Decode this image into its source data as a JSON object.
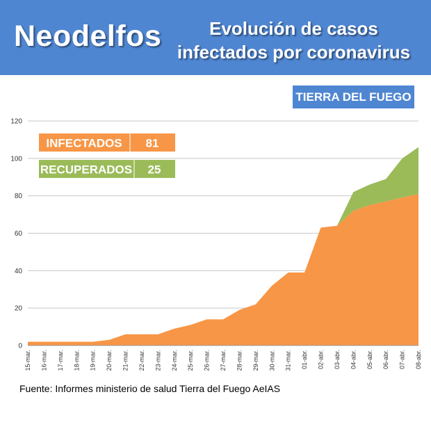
{
  "header": {
    "brand": "Neodelfos",
    "title_line1": "Evolución de casos",
    "title_line2": "infectados por coronavirus"
  },
  "region_badge": "TIERRA DEL FUEGO",
  "source": "Fuente: Informes ministerio de salud Tierra del Fuego AeIAS",
  "summary": {
    "infected_label": "INFECTADOS",
    "infected_value": "81",
    "recovered_label": "RECUPERADOS",
    "recovered_value": "25"
  },
  "colors": {
    "banner": "#4f86d2",
    "infected": "#f79646",
    "recovered": "#9bbb59"
  },
  "chart_data": {
    "type": "area",
    "stacked": true,
    "x": [
      "15-mar.",
      "16-mar.",
      "17-mar.",
      "18-mar.",
      "19-mar.",
      "20-mar.",
      "21-mar.",
      "22-mar.",
      "23-mar.",
      "24-mar.",
      "25-mar.",
      "26-mar.",
      "27-mar.",
      "28-mar.",
      "29-mar.",
      "30-mar.",
      "31-mar.",
      "01-abr.",
      "02-abr.",
      "03-abr.",
      "04-abr.",
      "05-abr.",
      "06-abr.",
      "07-abr.",
      "08-abr."
    ],
    "series": [
      {
        "name": "INFECTADOS",
        "color": "#f79646",
        "values": [
          2,
          2,
          2,
          2,
          2,
          3,
          6,
          6,
          6,
          9,
          11,
          14,
          14,
          19,
          22,
          32,
          39,
          39,
          63,
          64,
          72,
          75,
          77,
          79,
          81
        ]
      },
      {
        "name": "RECUPERADOS",
        "color": "#9bbb59",
        "values": [
          0,
          0,
          0,
          0,
          0,
          0,
          0,
          0,
          0,
          0,
          0,
          0,
          0,
          0,
          0,
          0,
          0,
          0,
          0,
          0,
          10,
          11,
          12,
          21,
          25
        ]
      }
    ],
    "y_ticks": [
      0,
      20,
      40,
      60,
      80,
      100,
      120
    ],
    "ylim": [
      0,
      120
    ],
    "grid": true
  }
}
